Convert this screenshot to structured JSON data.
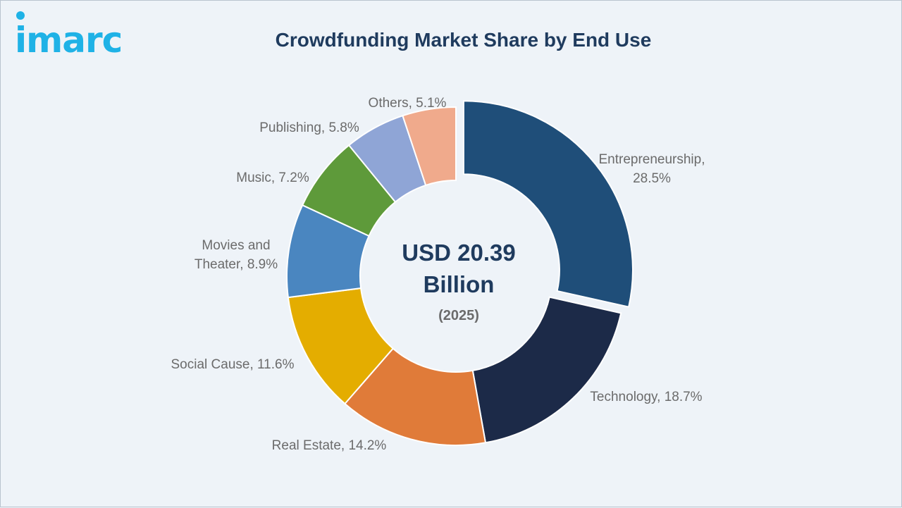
{
  "brand": {
    "logo_text": "imarc",
    "color": "#1fb2e6"
  },
  "title": "Crowdfunding Market Share by End Use",
  "center": {
    "line1": "USD 20.39",
    "line2": "Billion",
    "year": "(2025)"
  },
  "chart_data": {
    "type": "pie",
    "subtype": "donut",
    "title": "Crowdfunding Market Share by End Use",
    "unit": "%",
    "slices": [
      {
        "label": "Entrepreneurship,",
        "label2": "28.5%",
        "value": 28.5,
        "color": "#1f4e79",
        "exploded": true
      },
      {
        "label": "Technology, 18.7%",
        "value": 18.7,
        "color": "#1c2a48",
        "exploded": false
      },
      {
        "label": "Real Estate, 14.2%",
        "value": 14.2,
        "color": "#e07b39",
        "exploded": false
      },
      {
        "label": "Social Cause, 11.6%",
        "value": 11.6,
        "color": "#e4ad00",
        "exploded": false
      },
      {
        "label": "Movies and",
        "label2": "Theater, 8.9%",
        "value": 8.9,
        "color": "#4a86c0",
        "exploded": false
      },
      {
        "label": "Music, 7.2%",
        "value": 7.2,
        "color": "#5e9a3a",
        "exploded": false
      },
      {
        "label": "Publishing, 5.8%",
        "value": 5.8,
        "color": "#8fa5d6",
        "exploded": false
      },
      {
        "label": "Others, 5.1%",
        "value": 5.1,
        "color": "#f0aa8c",
        "exploded": false
      }
    ]
  }
}
